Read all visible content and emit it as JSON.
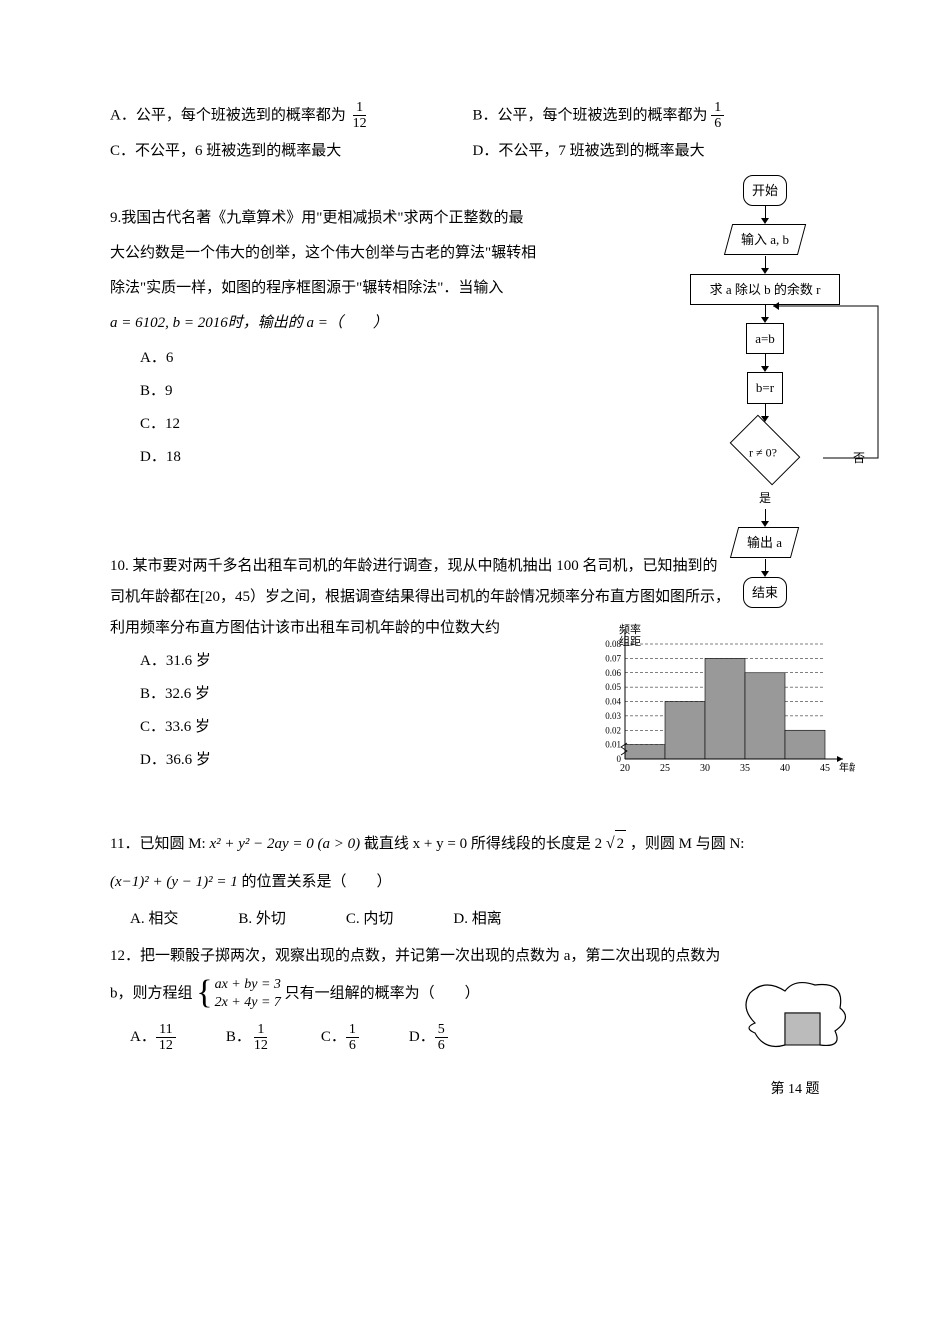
{
  "q8": {
    "optA": "A．公平，每个班被选到的概率都为",
    "optA_frac_num": "1",
    "optA_frac_den": "12",
    "optB": "B．公平，每个班被选到的概率都为",
    "optB_frac_num": "1",
    "optB_frac_den": "6",
    "optC": "C．不公平，6 班被选到的概率最大",
    "optD": "D．不公平，7 班被选到的概率最大"
  },
  "q9": {
    "line1": "9.我国古代名著《九章算术》用\"更相减损术\"求两个正整数的最",
    "line2": "大公约数是一个伟大的创举，这个伟大创举与古老的算法\"辗转相",
    "line3": "除法\"实质一样，如图的程序框图源于\"辗转相除法\"．当输入",
    "line4_pre": "a = 6102, b = 2016时，输出的 a =（　　）",
    "optA": "A．6",
    "optB": "B．9",
    "optC": "C．12",
    "optD": "D．18"
  },
  "flowchart": {
    "start": "开始",
    "input": "输入 a, b",
    "calc": "求 a 除以 b 的余数 r",
    "assign1": "a=b",
    "assign2": "b=r",
    "cond": "r ≠ 0?",
    "no": "否",
    "yes": "是",
    "output": "输出 a",
    "end": "结束"
  },
  "q10": {
    "line1": "10. 某市要对两千多名出租车司机的年龄进行调查，现从中随机抽出 100 名司机，已知抽到的",
    "line2": "司机年龄都在[20，45）岁之间，根据调查结果得出司机的年龄情况频率分布直方图如图所示，",
    "line3": "利用频率分布直方图估计该市出租车司机年龄的中位数大约",
    "optA": "A．31.6 岁",
    "optB": "B．32.6 岁",
    "optC": "C．33.6 岁",
    "optD": "D．36.6 岁"
  },
  "histogram": {
    "y_label1": "频率",
    "y_label2": "组距",
    "y_ticks": [
      "0",
      "0.01",
      "0.02",
      "0.03",
      "0.04",
      "0.05",
      "0.06",
      "0.07",
      "0.08"
    ],
    "x_ticks": [
      "20",
      "25",
      "30",
      "35",
      "40",
      "45"
    ],
    "x_label": "年龄/岁",
    "bars": [
      {
        "x": 20,
        "h": 0.01
      },
      {
        "x": 25,
        "h": 0.04
      },
      {
        "x": 30,
        "h": 0.07
      },
      {
        "x": 35,
        "h": 0.06
      },
      {
        "x": 40,
        "h": 0.02
      }
    ],
    "bar_color": "#999999",
    "grid_color": "#000000",
    "y_max": 0.08
  },
  "q11": {
    "line1_pre": "11．已知圆 M:",
    "eq1": "x² + y² − 2ay = 0 (a > 0)",
    "line1_mid": "截直线 x + y = 0 所得线段的长度是 2",
    "sqrt_val": "2",
    "line1_post": "，则圆 M 与圆 N:",
    "eq2": "(x−1)² + (y − 1)² = 1",
    "line2_post": " 的位置关系是（　　）",
    "optA": "A. 相交",
    "optB": "B. 外切",
    "optC": "C. 内切",
    "optD": "D. 相离"
  },
  "q12": {
    "line1": "12．把一颗骰子掷两次，观察出现的点数，并记第一次出现的点数为 a，第二次出现的点数为",
    "line2_pre": "b，则方程组",
    "sys_eq1": "ax + by = 3",
    "sys_eq2": "2x + 4y = 7",
    "line2_post": " 只有一组解的概率为（　　）",
    "optA_label": "A．",
    "optA_num": "11",
    "optA_den": "12",
    "optB_label": "B．",
    "optB_num": "1",
    "optB_den": "12",
    "optC_label": "C．",
    "optC_num": "1",
    "optC_den": "6",
    "optD_label": "D．",
    "optD_num": "5",
    "optD_den": "6",
    "fig_label": "第 14 题"
  }
}
